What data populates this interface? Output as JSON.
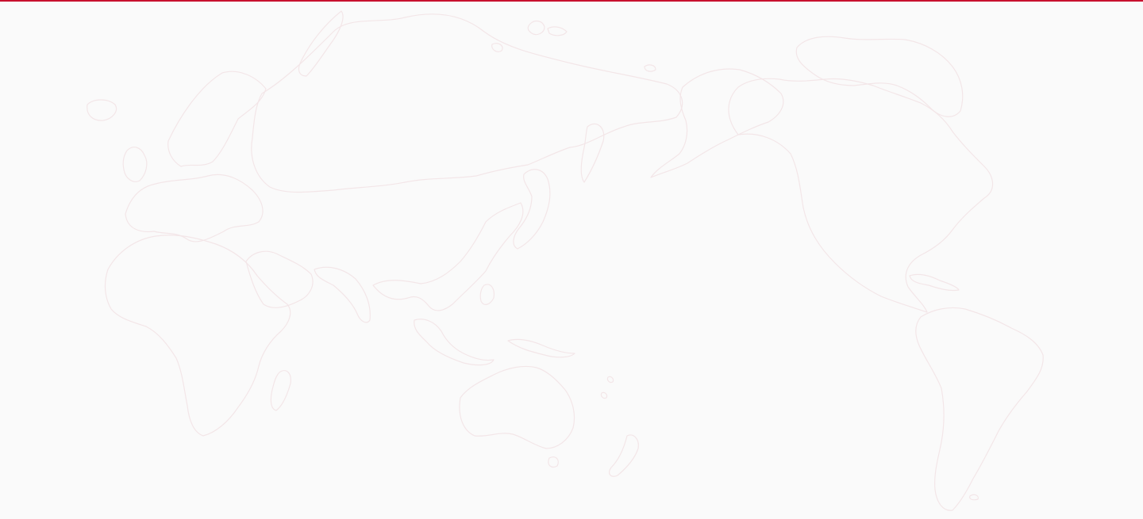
{
  "theme": {
    "background": "#fafafa",
    "accent": "#c8102e",
    "map_outline": "#f3e6e8"
  },
  "background": {
    "icon": "world-map-outline",
    "projection": "pacific-centered"
  }
}
